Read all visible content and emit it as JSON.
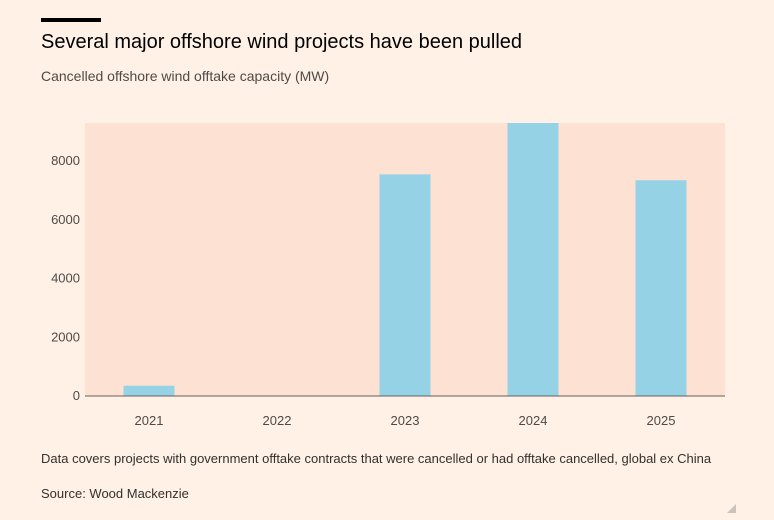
{
  "header": {
    "title": "Several major offshore wind projects have been pulled",
    "subtitle": "Cancelled offshore wind offtake capacity (MW)"
  },
  "footer": {
    "note": "Data covers projects with government offtake contracts that were cancelled or had offtake cancelled, global ex China",
    "source": "Source: Wood Mackenzie"
  },
  "colors": {
    "bar": "#96D2E6",
    "plot_bg": "#FDE1D2",
    "page_bg": "#FFF1E5"
  },
  "chart_data": {
    "type": "bar",
    "title": "Several major offshore wind projects have been pulled",
    "subtitle": "Cancelled offshore wind offtake capacity (MW)",
    "categories": [
      "2021",
      "2022",
      "2023",
      "2024",
      "2025"
    ],
    "values": [
      350,
      0,
      7550,
      9300,
      7350
    ],
    "ylim": [
      0,
      9300
    ],
    "yticks": [
      0,
      2000,
      4000,
      6000,
      8000
    ],
    "grid": false,
    "xlabel": "",
    "ylabel": ""
  }
}
